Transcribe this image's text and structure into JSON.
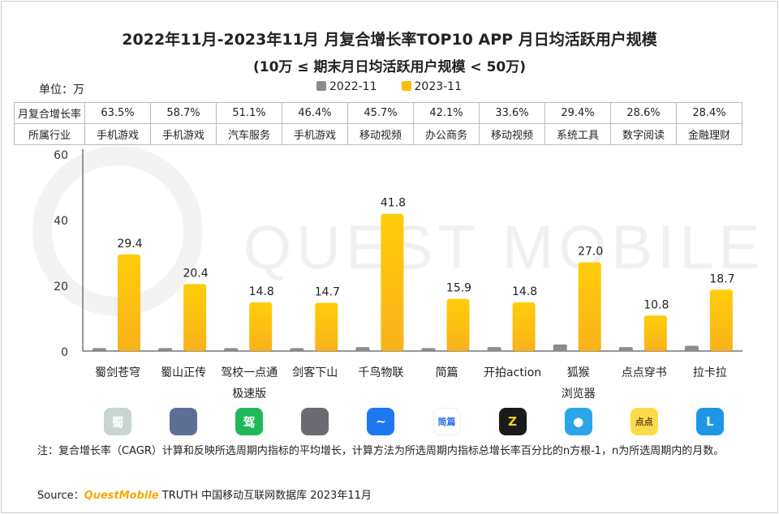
{
  "title": "2022年11月-2023年11月 月复合增长率TOP10 APP 月日均活跃用户规模",
  "subtitle": "(10万 ≤ 期末月日均活跃用户规模 < 50万)",
  "unit": "单位：万",
  "table": {
    "row1_header": "月复合增长率",
    "row2_header": "所属行业",
    "cagr": [
      "63.5%",
      "58.7%",
      "51.1%",
      "46.4%",
      "45.7%",
      "42.1%",
      "33.6%",
      "29.4%",
      "28.6%",
      "28.4%"
    ],
    "industry": [
      "手机游戏",
      "手机游戏",
      "汽车服务",
      "手机游戏",
      "移动视频",
      "办公商务",
      "移动视频",
      "系统工具",
      "数字阅读",
      "金融理财"
    ]
  },
  "chart_data": {
    "type": "bar",
    "title": "2022年11月-2023年11月 月复合增长率TOP10 APP 月日均活跃用户规模",
    "ylabel": "单位：万",
    "ylim": [
      0,
      60
    ],
    "yticks": [
      "0",
      "20",
      "40",
      "60"
    ],
    "legend_position": "top",
    "categories": [
      "蜀剑苍穹",
      "蜀山正传",
      "驾校一点通极速版",
      "剑客下山",
      "千鸟物联",
      "简篇",
      "开拍action",
      "狐猴浏览器",
      "点点穿书",
      "拉卡拉"
    ],
    "category_lines": [
      [
        "蜀剑苍穹"
      ],
      [
        "蜀山正传"
      ],
      [
        "驾校一点通",
        "极速版"
      ],
      [
        "剑客下山"
      ],
      [
        "千鸟物联"
      ],
      [
        "简篇"
      ],
      [
        "开拍action"
      ],
      [
        "狐猴",
        "浏览器"
      ],
      [
        "点点穿书"
      ],
      [
        "拉卡拉"
      ]
    ],
    "series": [
      {
        "name": "2022-11",
        "color": "#8c8c8c",
        "values": [
          0.9,
          0.9,
          0.9,
          0.9,
          1.2,
          0.9,
          1.2,
          2.0,
          1.2,
          1.6
        ]
      },
      {
        "name": "2023-11",
        "color": "#fbbf0a",
        "values": [
          29.4,
          20.4,
          14.8,
          14.7,
          41.8,
          15.9,
          14.8,
          27.0,
          10.8,
          18.7
        ],
        "labels": [
          "29.4",
          "20.4",
          "14.8",
          "14.7",
          "41.8",
          "15.9",
          "14.8",
          "27.0",
          "10.8",
          "18.7"
        ]
      }
    ]
  },
  "icons": [
    {
      "name": "shujian-icon",
      "color": "#c9d6d0",
      "glyph": "蜀"
    },
    {
      "name": "shushan-icon",
      "color": "#5d6f95",
      "glyph": ""
    },
    {
      "name": "jiaxiao-icon",
      "color": "#20b85a",
      "glyph": "驾"
    },
    {
      "name": "jianke-icon",
      "color": "#6b6a72",
      "glyph": ""
    },
    {
      "name": "qianniao-icon",
      "color": "#1e78f0",
      "glyph": "~"
    },
    {
      "name": "jianpian-icon",
      "color": "#ffffff",
      "glyph": "简篇"
    },
    {
      "name": "kaipai-icon",
      "color": "#1a1a1a",
      "glyph": "Z"
    },
    {
      "name": "houhou-icon",
      "color": "#2aa6e8",
      "glyph": "●"
    },
    {
      "name": "diandian-icon",
      "color": "#f9dc4a",
      "glyph": "点点"
    },
    {
      "name": "lakala-icon",
      "color": "#1e96e6",
      "glyph": "L"
    }
  ],
  "watermark": "QUEST MOBILE",
  "note": "注：复合增长率（CAGR）计算和反映所选周期内指标的平均增长，计算方法为所选周期内指标总增长率百分比的n方根-1，n为所选周期内的月数。",
  "source": {
    "prefix": "Source：",
    "brand": "QuestMobile",
    "rest": " TRUTH 中国移动互联网数据库 2023年11月"
  }
}
